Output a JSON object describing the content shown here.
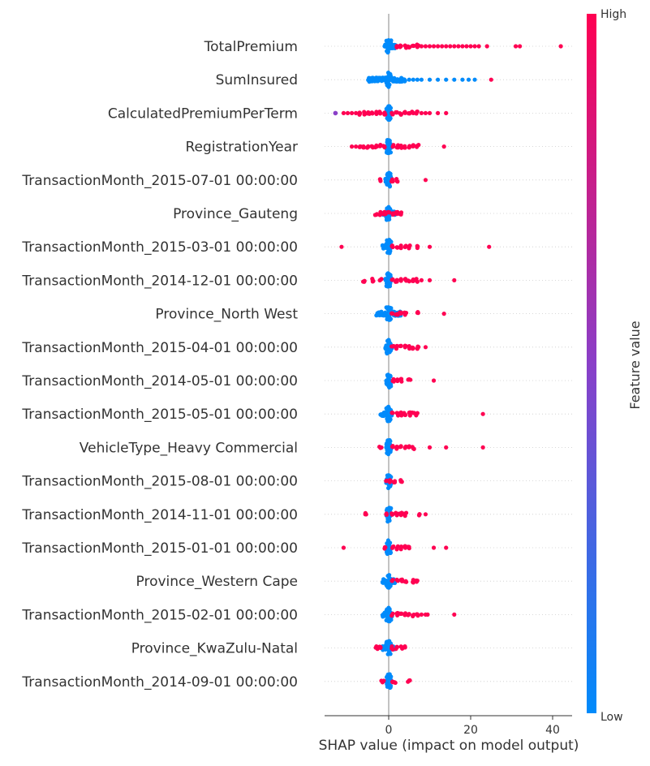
{
  "chart_data": {
    "type": "scatter",
    "subtype": "shap-beeswarm-summary",
    "xlabel": "SHAP value (impact on model output)",
    "xlim": [
      -10,
      45
    ],
    "xticks": [
      0,
      20,
      40
    ],
    "colorbar": {
      "label": "Feature value",
      "high": "High",
      "low": "Low"
    },
    "colors": {
      "low": "#008bfb",
      "high": "#ff0052",
      "mid": "#8a3fc8",
      "zero_line": "#999999",
      "grid": "#cccccc"
    },
    "features": [
      {
        "name": "TotalPremium",
        "blue_range": [
          -1,
          1.8
        ],
        "high": [
          2,
          3,
          4,
          5,
          6,
          7,
          8,
          9,
          10,
          11,
          12,
          13,
          14,
          15,
          16,
          17,
          18,
          19,
          20,
          21,
          22,
          24,
          31,
          32,
          42
        ]
      },
      {
        "name": "SumInsured",
        "blue_range": [
          -5,
          4
        ],
        "blue_sparse": [
          5,
          6,
          7,
          8,
          10,
          12,
          14,
          16,
          18,
          19.5,
          21
        ],
        "high": [
          25
        ]
      },
      {
        "name": "CalculatedPremiumPerTerm",
        "blue_range": [
          -0.6,
          0.6
        ],
        "high": [
          -11,
          -10,
          -9,
          -8,
          -7,
          -6,
          -5,
          -4,
          -3,
          -2,
          -1,
          1,
          2,
          3,
          4,
          5,
          6,
          7,
          8,
          9,
          10,
          12,
          14
        ],
        "mid": [
          -13
        ]
      },
      {
        "name": "RegistrationYear",
        "blue_range": [
          -0.6,
          0.6
        ],
        "high": [
          -9,
          -8,
          -7,
          -6,
          -5,
          -4,
          -3,
          -2,
          -1,
          1,
          2,
          3,
          4,
          5,
          6,
          7,
          13.5
        ]
      },
      {
        "name": "TransactionMonth_2015-07-01 00:00:00",
        "blue_range": [
          -0.8,
          0.8
        ],
        "high": [
          -2,
          1,
          2,
          9
        ]
      },
      {
        "name": "Province_Gauteng",
        "blue_range": [
          -1.5,
          1.5
        ],
        "high": [
          -3,
          -2,
          -1,
          0,
          1,
          2,
          3
        ]
      },
      {
        "name": "TransactionMonth_2015-03-01 00:00:00",
        "blue_range": [
          -1.5,
          0.8
        ],
        "high": [
          -11.5,
          1,
          2,
          3,
          4,
          5,
          7,
          10,
          24.5
        ]
      },
      {
        "name": "TransactionMonth_2014-12-01 00:00:00",
        "blue_range": [
          -0.8,
          0.8
        ],
        "high": [
          -6,
          -4,
          -2,
          1,
          2,
          3,
          4,
          5,
          6,
          7,
          8,
          10,
          16
        ]
      },
      {
        "name": "Province_North West",
        "blue_range": [
          -3,
          3
        ],
        "high": [
          1,
          2,
          3,
          4,
          7,
          13.5
        ]
      },
      {
        "name": "TransactionMonth_2015-04-01 00:00:00",
        "blue_range": [
          -0.8,
          0.8
        ],
        "high": [
          1,
          2,
          3,
          4,
          5,
          6,
          7,
          9
        ]
      },
      {
        "name": "TransactionMonth_2014-05-01 00:00:00",
        "blue_range": [
          -0.6,
          0.6
        ],
        "high": [
          1,
          2,
          3,
          5,
          11
        ]
      },
      {
        "name": "TransactionMonth_2015-05-01 00:00:00",
        "blue_range": [
          -2,
          0.8
        ],
        "high": [
          1,
          2,
          3,
          4,
          5,
          6,
          7,
          23
        ]
      },
      {
        "name": "VehicleType_Heavy Commercial",
        "blue_range": [
          -0.6,
          0.6
        ],
        "high": [
          -2,
          1,
          2,
          3,
          4,
          5,
          6,
          10,
          14,
          23
        ]
      },
      {
        "name": "TransactionMonth_2015-08-01 00:00:00",
        "blue_range": [
          -0.6,
          0.6
        ],
        "high": [
          -0.5,
          0.5,
          1.5,
          3
        ]
      },
      {
        "name": "TransactionMonth_2014-11-01 00:00:00",
        "blue_range": [
          -0.6,
          0.6
        ],
        "high": [
          -5.5,
          -0.5,
          1,
          2,
          3,
          4,
          7.5,
          9
        ]
      },
      {
        "name": "TransactionMonth_2015-01-01 00:00:00",
        "blue_range": [
          -0.6,
          0.6
        ],
        "high": [
          -11,
          -1,
          1,
          2,
          3,
          4,
          5,
          11,
          14
        ]
      },
      {
        "name": "Province_Western Cape",
        "blue_range": [
          -1.5,
          1.5
        ],
        "high": [
          1,
          2,
          3,
          4,
          6,
          7
        ]
      },
      {
        "name": "TransactionMonth_2015-02-01 00:00:00",
        "blue_range": [
          -1.5,
          0.8
        ],
        "high": [
          1,
          2,
          3,
          4,
          5,
          6,
          7,
          8,
          9,
          9.5,
          16
        ]
      },
      {
        "name": "Province_KwaZulu-Natal",
        "blue_range": [
          -1.5,
          1.5
        ],
        "high": [
          -3,
          -2,
          1,
          2,
          3,
          4
        ]
      },
      {
        "name": "TransactionMonth_2014-09-01 00:00:00",
        "blue_range": [
          -0.6,
          0.6
        ],
        "high": [
          -1.5,
          1,
          1.5,
          5
        ]
      }
    ]
  }
}
